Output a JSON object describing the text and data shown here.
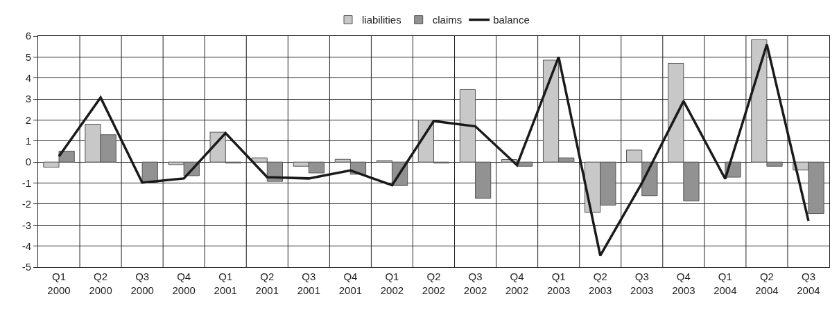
{
  "chart_data": {
    "type": "bar",
    "categories": [
      "Q1\n2000",
      "Q2\n2000",
      "Q3\n2000",
      "Q4\n2000",
      "Q1\n2001",
      "Q2\n2001",
      "Q3\n2001",
      "Q4\n2001",
      "Q1\n2002",
      "Q2\n2002",
      "Q3\n2002",
      "Q4\n2002",
      "Q1\n2003",
      "Q2\n2003",
      "Q3\n2003",
      "Q4\n2003",
      "Q1\n2004",
      "Q2\n2004",
      "Q3\n2004"
    ],
    "series": [
      {
        "name": "liabilities",
        "color": "#c8c8c8",
        "values": [
          -0.25,
          1.8,
          null,
          -0.12,
          1.42,
          0.2,
          -0.2,
          0.13,
          0.07,
          2.0,
          3.45,
          0.12,
          4.85,
          -2.4,
          0.57,
          4.7,
          null,
          5.82,
          -0.38
        ]
      },
      {
        "name": "claims",
        "color": "#929292",
        "values": [
          0.52,
          1.3,
          -0.95,
          -0.65,
          -0.05,
          -0.92,
          -0.52,
          -0.58,
          -1.12,
          -0.05,
          -1.72,
          -0.2,
          0.2,
          -2.05,
          -1.6,
          -1.85,
          -0.72,
          -0.2,
          -2.45
        ]
      },
      {
        "name": "balance",
        "type": "line",
        "color": "#1a1a1a",
        "values": [
          0.27,
          3.07,
          -0.98,
          -0.78,
          1.38,
          -0.72,
          -0.78,
          -0.4,
          -1.1,
          1.95,
          1.7,
          -0.15,
          5.0,
          -4.45,
          -1.0,
          2.9,
          -0.8,
          5.6,
          -2.8
        ]
      }
    ],
    "ylim": [
      -5,
      6
    ],
    "yticks": [
      -5,
      -4,
      -3,
      -2,
      -1,
      0,
      1,
      2,
      3,
      4,
      5,
      6
    ],
    "grid": true,
    "legend": "top"
  }
}
